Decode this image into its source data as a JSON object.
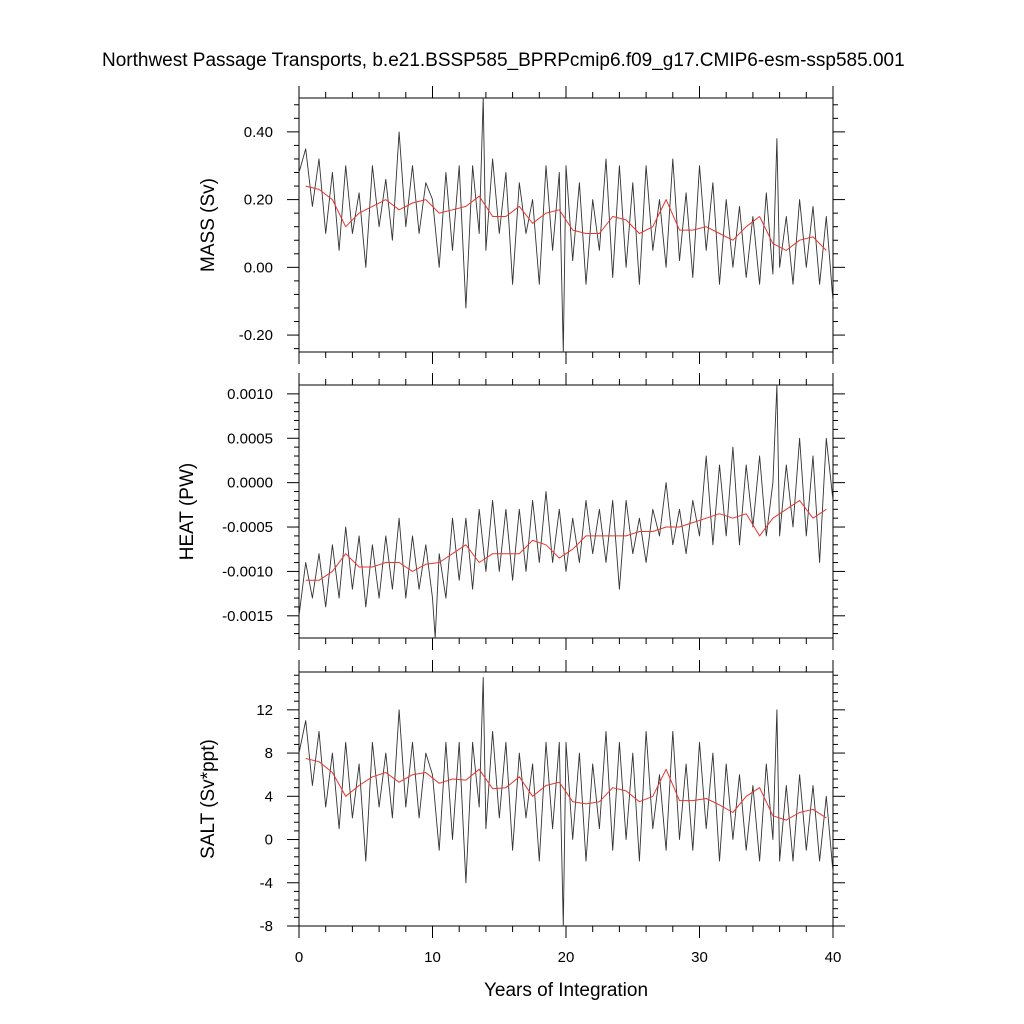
{
  "figure": {
    "title": "Northwest Passage Transports, b.e21.BSSP585_BPRPcmip6.f09_g17.CMIP6-esm-ssp585.001"
  },
  "chart_data": [
    {
      "type": "line",
      "ylabel": "MASS (Sv)",
      "xlabel": "",
      "xlim": [
        0,
        40
      ],
      "ylim": [
        -0.25,
        0.5
      ],
      "y_ticks": [
        -0.2,
        0.0,
        0.2,
        0.4
      ],
      "y_tick_labels": [
        "-0.20",
        "0.00",
        "0.20",
        "0.40"
      ],
      "x_ticks": [
        0,
        10,
        20,
        30,
        40
      ],
      "x_tick_labels": [
        "",
        "",
        "",
        "",
        ""
      ],
      "series": [
        {
          "color": "#333333",
          "x": [
            0.0,
            0.5,
            1.0,
            1.5,
            2.0,
            2.5,
            3.0,
            3.5,
            4.0,
            4.5,
            5.0,
            5.5,
            6.0,
            6.5,
            7.0,
            7.5,
            8.0,
            8.5,
            9.0,
            9.5,
            10.0,
            10.5,
            11.0,
            11.5,
            12.0,
            12.5,
            13.0,
            13.5,
            13.8,
            14.0,
            14.5,
            15.0,
            15.5,
            16.0,
            16.5,
            17.0,
            17.5,
            18.0,
            18.5,
            19.0,
            19.5,
            19.8,
            20.0,
            20.5,
            21.0,
            21.5,
            22.0,
            22.5,
            23.0,
            23.5,
            24.0,
            24.5,
            25.0,
            25.5,
            26.0,
            26.5,
            27.0,
            27.5,
            28.0,
            28.5,
            29.0,
            29.5,
            30.0,
            30.5,
            31.0,
            31.5,
            32.0,
            32.5,
            33.0,
            33.5,
            34.0,
            34.5,
            35.0,
            35.5,
            35.8,
            36.0,
            36.5,
            37.0,
            37.5,
            38.0,
            38.5,
            39.0,
            39.5,
            40.0
          ],
          "values": [
            0.28,
            0.35,
            0.18,
            0.32,
            0.1,
            0.28,
            0.05,
            0.3,
            0.1,
            0.22,
            0.0,
            0.3,
            0.12,
            0.26,
            0.08,
            0.4,
            0.12,
            0.3,
            0.1,
            0.25,
            0.2,
            0.0,
            0.28,
            0.05,
            0.3,
            -0.12,
            0.3,
            0.1,
            0.5,
            0.05,
            0.32,
            0.1,
            0.28,
            -0.05,
            0.25,
            0.1,
            0.2,
            -0.05,
            0.3,
            0.05,
            0.28,
            -0.25,
            0.3,
            0.02,
            0.25,
            -0.05,
            0.2,
            0.05,
            0.32,
            -0.03,
            0.3,
            0.0,
            0.25,
            -0.05,
            0.3,
            0.05,
            0.2,
            0.0,
            0.32,
            0.02,
            0.22,
            -0.03,
            0.3,
            0.05,
            0.25,
            -0.05,
            0.2,
            0.0,
            0.18,
            -0.03,
            0.15,
            -0.05,
            0.22,
            -0.02,
            0.38,
            0.0,
            0.15,
            -0.05,
            0.2,
            0.0,
            0.18,
            -0.05,
            0.15,
            -0.1
          ]
        },
        {
          "color": "#e8352e",
          "x": [
            0.5,
            1.5,
            2.5,
            3.5,
            4.5,
            5.5,
            6.5,
            7.5,
            8.5,
            9.5,
            10.5,
            11.5,
            12.5,
            13.5,
            14.5,
            15.5,
            16.5,
            17.5,
            18.5,
            19.5,
            20.5,
            21.5,
            22.5,
            23.5,
            24.5,
            25.5,
            26.5,
            27.5,
            28.5,
            29.5,
            30.5,
            31.5,
            32.5,
            33.5,
            34.5,
            35.5,
            36.5,
            37.5,
            38.5,
            39.5
          ],
          "values": [
            0.24,
            0.23,
            0.2,
            0.12,
            0.16,
            0.18,
            0.2,
            0.17,
            0.19,
            0.2,
            0.16,
            0.17,
            0.18,
            0.21,
            0.15,
            0.15,
            0.18,
            0.13,
            0.16,
            0.17,
            0.11,
            0.1,
            0.1,
            0.15,
            0.14,
            0.1,
            0.12,
            0.2,
            0.11,
            0.11,
            0.12,
            0.1,
            0.08,
            0.12,
            0.15,
            0.07,
            0.05,
            0.08,
            0.09,
            0.05
          ]
        }
      ]
    },
    {
      "type": "line",
      "ylabel": "HEAT (PW)",
      "xlabel": "",
      "xlim": [
        0,
        40
      ],
      "ylim": [
        -0.00175,
        0.0011
      ],
      "y_ticks": [
        -0.0015,
        -0.001,
        -0.0005,
        0.0,
        0.0005,
        0.001
      ],
      "y_tick_labels": [
        "-0.0015",
        "-0.0010",
        "-0.0005",
        "0.0000",
        "0.0005",
        "0.0010"
      ],
      "x_ticks": [
        0,
        10,
        20,
        30,
        40
      ],
      "x_tick_labels": [
        "",
        "",
        "",
        "",
        ""
      ],
      "series": [
        {
          "color": "#333333",
          "x": [
            0.0,
            0.5,
            1.0,
            1.5,
            2.0,
            2.5,
            3.0,
            3.5,
            4.0,
            4.5,
            5.0,
            5.5,
            6.0,
            6.5,
            7.0,
            7.5,
            8.0,
            8.5,
            9.0,
            9.5,
            10.0,
            10.2,
            10.5,
            11.0,
            11.5,
            12.0,
            12.5,
            13.0,
            13.5,
            14.0,
            14.5,
            15.0,
            15.5,
            16.0,
            16.5,
            17.0,
            17.5,
            18.0,
            18.5,
            19.0,
            19.5,
            20.0,
            20.5,
            21.0,
            21.5,
            22.0,
            22.5,
            23.0,
            23.5,
            24.0,
            24.5,
            25.0,
            25.5,
            26.0,
            26.5,
            27.0,
            27.5,
            28.0,
            28.5,
            29.0,
            29.5,
            30.0,
            30.5,
            31.0,
            31.5,
            32.0,
            32.5,
            33.0,
            33.5,
            34.0,
            34.5,
            35.0,
            35.5,
            35.8,
            36.0,
            36.5,
            37.0,
            37.5,
            38.0,
            38.5,
            39.0,
            39.5,
            40.0
          ],
          "values": [
            -0.0015,
            -0.0009,
            -0.0013,
            -0.0008,
            -0.0014,
            -0.0007,
            -0.0013,
            -0.0005,
            -0.0012,
            -0.0006,
            -0.0014,
            -0.0007,
            -0.0013,
            -0.0006,
            -0.0012,
            -0.0004,
            -0.0013,
            -0.0006,
            -0.0012,
            -0.0007,
            -0.0013,
            -0.00175,
            -0.0008,
            -0.0013,
            -0.0004,
            -0.0011,
            -0.0004,
            -0.0012,
            -0.0003,
            -0.001,
            -0.0002,
            -0.001,
            -0.0003,
            -0.0011,
            -0.0003,
            -0.001,
            -0.0002,
            -0.0009,
            -0.0001,
            -0.0009,
            -0.0003,
            -0.001,
            -0.0004,
            -0.0009,
            -0.0002,
            -0.0008,
            -0.0003,
            -0.0009,
            -0.0002,
            -0.0012,
            -0.0002,
            -0.0008,
            -0.0004,
            -0.0009,
            -0.0003,
            -0.0006,
            0.0,
            -0.0007,
            -0.0003,
            -0.0008,
            -0.0002,
            -0.0006,
            0.0003,
            -0.0007,
            0.0002,
            -0.0006,
            0.0004,
            -0.0007,
            0.0002,
            -0.0005,
            0.0003,
            -0.0006,
            0.0,
            0.0011,
            -0.0006,
            0.0002,
            -0.0005,
            0.0005,
            -0.0006,
            0.0003,
            -0.0009,
            0.0005,
            -0.0002
          ]
        },
        {
          "color": "#e8352e",
          "x": [
            0.5,
            1.5,
            2.5,
            3.5,
            4.5,
            5.5,
            6.5,
            7.5,
            8.5,
            9.5,
            10.5,
            11.5,
            12.5,
            13.5,
            14.5,
            15.5,
            16.5,
            17.5,
            18.5,
            19.5,
            20.5,
            21.5,
            22.5,
            23.5,
            24.5,
            25.5,
            26.5,
            27.5,
            28.5,
            29.5,
            30.5,
            31.5,
            32.5,
            33.5,
            34.5,
            35.5,
            36.5,
            37.5,
            38.5,
            39.5
          ],
          "values": [
            -0.0011,
            -0.0011,
            -0.001,
            -0.0008,
            -0.00095,
            -0.00095,
            -0.0009,
            -0.0009,
            -0.001,
            -0.00092,
            -0.0009,
            -0.0008,
            -0.0007,
            -0.0009,
            -0.0008,
            -0.0008,
            -0.0008,
            -0.00065,
            -0.0007,
            -0.00085,
            -0.00075,
            -0.0006,
            -0.0006,
            -0.0006,
            -0.0006,
            -0.00055,
            -0.00055,
            -0.0005,
            -0.0005,
            -0.00045,
            -0.0004,
            -0.00035,
            -0.0004,
            -0.00035,
            -0.0006,
            -0.0004,
            -0.0003,
            -0.0002,
            -0.0004,
            -0.0003
          ]
        }
      ]
    },
    {
      "type": "line",
      "ylabel": "SALT (Sv*ppt)",
      "xlabel": "Years of Integration",
      "xlim": [
        0,
        40
      ],
      "ylim": [
        -8,
        15.5
      ],
      "y_ticks": [
        -8,
        -4,
        0,
        4,
        8,
        12
      ],
      "y_tick_labels": [
        "-8",
        "-4",
        "0",
        "4",
        "8",
        "12"
      ],
      "x_ticks": [
        0,
        10,
        20,
        30,
        40
      ],
      "x_tick_labels": [
        "0",
        "10",
        "20",
        "30",
        "40"
      ],
      "series": [
        {
          "color": "#333333",
          "x": [
            0.0,
            0.5,
            1.0,
            1.5,
            2.0,
            2.5,
            3.0,
            3.5,
            4.0,
            4.5,
            5.0,
            5.5,
            6.0,
            6.5,
            7.0,
            7.5,
            8.0,
            8.5,
            9.0,
            9.5,
            10.0,
            10.5,
            11.0,
            11.5,
            12.0,
            12.5,
            13.0,
            13.5,
            13.8,
            14.0,
            14.5,
            15.0,
            15.5,
            16.0,
            16.5,
            17.0,
            17.5,
            18.0,
            18.5,
            19.0,
            19.5,
            19.8,
            20.0,
            20.5,
            21.0,
            21.5,
            22.0,
            22.5,
            23.0,
            23.5,
            24.0,
            24.5,
            25.0,
            25.5,
            26.0,
            26.5,
            27.0,
            27.5,
            28.0,
            28.5,
            29.0,
            29.5,
            30.0,
            30.5,
            31.0,
            31.5,
            32.0,
            32.5,
            33.0,
            33.5,
            34.0,
            34.5,
            35.0,
            35.5,
            35.8,
            36.0,
            36.5,
            37.0,
            37.5,
            38.0,
            38.5,
            39.0,
            39.5,
            40.0
          ],
          "values": [
            8,
            11,
            5,
            10,
            3,
            8,
            1,
            9,
            2,
            7,
            -2,
            9,
            3,
            8,
            2,
            12,
            3,
            9,
            2,
            8,
            6,
            -1,
            9,
            0,
            9,
            -4,
            9,
            3,
            15,
            1,
            10,
            2,
            9,
            -1,
            8,
            2,
            7,
            -2,
            9,
            1,
            9,
            -8,
            9,
            0,
            8,
            -2,
            7,
            1,
            10,
            -1,
            9,
            0,
            8,
            -2,
            10,
            1,
            6,
            -1,
            10,
            0,
            7,
            -1,
            9,
            1,
            8,
            -2,
            7,
            0,
            6,
            -1,
            5,
            -2,
            7,
            0,
            12,
            -2,
            5,
            -2,
            6,
            -1,
            5,
            -2,
            4,
            -3
          ]
        },
        {
          "color": "#e8352e",
          "x": [
            0.5,
            1.5,
            2.5,
            3.5,
            4.5,
            5.5,
            6.5,
            7.5,
            8.5,
            9.5,
            10.5,
            11.5,
            12.5,
            13.5,
            14.5,
            15.5,
            16.5,
            17.5,
            18.5,
            19.5,
            20.5,
            21.5,
            22.5,
            23.5,
            24.5,
            25.5,
            26.5,
            27.5,
            28.5,
            29.5,
            30.5,
            31.5,
            32.5,
            33.5,
            34.5,
            35.5,
            36.5,
            37.5,
            38.5,
            39.5
          ],
          "values": [
            7.5,
            7.2,
            6.2,
            4,
            5,
            5.8,
            6.2,
            5.3,
            6,
            6.2,
            5.2,
            5.6,
            5.5,
            6.5,
            4.7,
            4.8,
            5.8,
            4,
            5,
            5.3,
            3.5,
            3.3,
            3.5,
            4.8,
            4.5,
            3.5,
            4,
            6.5,
            3.6,
            3.6,
            3.8,
            3.2,
            2.5,
            4,
            4.8,
            2.2,
            1.8,
            2.5,
            2.8,
            2
          ]
        }
      ]
    }
  ]
}
